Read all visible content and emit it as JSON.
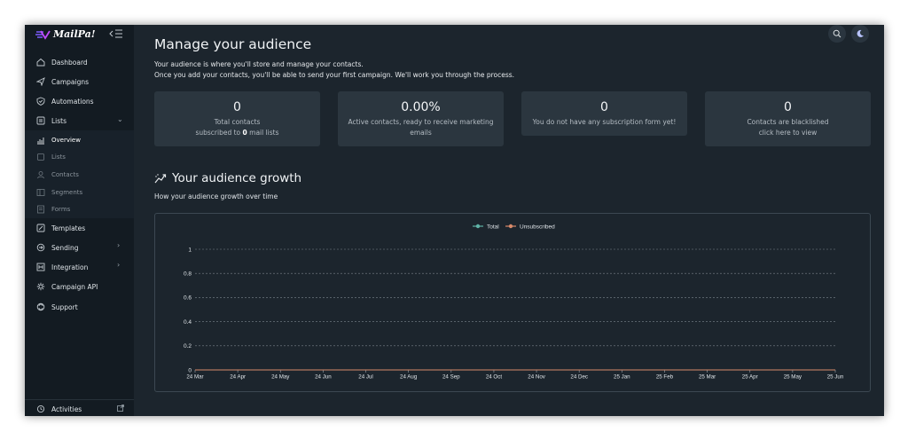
{
  "app": {
    "logo_text": "MailPa!"
  },
  "sidebar": {
    "items": [
      {
        "label": "Dashboard",
        "icon": "home-icon"
      },
      {
        "label": "Campaigns",
        "icon": "send-icon"
      },
      {
        "label": "Automations",
        "icon": "shield-icon"
      },
      {
        "label": "Lists",
        "icon": "list-icon",
        "chevron": "⌄"
      },
      {
        "label": "Templates",
        "icon": "edit-icon"
      },
      {
        "label": "Sending",
        "icon": "refresh-icon",
        "chevron": "›"
      },
      {
        "label": "Integration",
        "icon": "integration-icon",
        "chevron": "›"
      },
      {
        "label": "Campaign API",
        "icon": "gear-icon"
      },
      {
        "label": "Support",
        "icon": "support-icon"
      }
    ],
    "lists_submenu": [
      {
        "label": "Overview",
        "active": true
      },
      {
        "label": "Lists"
      },
      {
        "label": "Contacts"
      },
      {
        "label": "Segments"
      },
      {
        "label": "Forms"
      }
    ],
    "footer": {
      "label": "Activities"
    }
  },
  "main": {
    "title": "Manage your audience",
    "desc_line1": "Your audience is where you'll store and manage your contacts.",
    "desc_line2": "Once you add your contacts, you'll be able to send your first campaign. We'll work you through the process.",
    "cards": [
      {
        "value": "0",
        "line1": "Total contacts",
        "line2_prefix": "subscribed to ",
        "line2_bold": "0",
        "line2_suffix": " mail lists"
      },
      {
        "value": "0.00%",
        "line1": "Active contacts, ready to receive marketing",
        "line2": "emails"
      },
      {
        "value": "0",
        "line1": "You do not have any subscription form yet!"
      },
      {
        "value": "0",
        "line1": "Contacts are blacklished",
        "line2": "click here to view"
      }
    ],
    "growth": {
      "title": "Your audience growth",
      "desc": "How your audience growth over time"
    }
  },
  "chart_data": {
    "type": "line",
    "title": "",
    "xlabel": "",
    "ylabel": "",
    "x": [
      "24 Mar",
      "24 Apr",
      "24 May",
      "24 Jun",
      "24 Jul",
      "24 Aug",
      "24 Sep",
      "24 Oct",
      "24 Nov",
      "24 Dec",
      "25 Jan",
      "25 Feb",
      "25 Mar",
      "25 Apr",
      "25 May",
      "25 Jun"
    ],
    "series": [
      {
        "name": "Total",
        "color": "#5fb3a6",
        "values": [
          0,
          0,
          0,
          0,
          0,
          0,
          0,
          0,
          0,
          0,
          0,
          0,
          0,
          0,
          0,
          0
        ]
      },
      {
        "name": "Unsubscribed",
        "color": "#d98a6a",
        "values": [
          0,
          0,
          0,
          0,
          0,
          0,
          0,
          0,
          0,
          0,
          0,
          0,
          0,
          0,
          0,
          0
        ]
      }
    ],
    "yticks": [
      "1",
      "0.8",
      "0.6",
      "0.4",
      "0.2",
      "0"
    ],
    "ylim": [
      0,
      1
    ],
    "grid": "dashed horizontal",
    "legend": "top-center"
  }
}
